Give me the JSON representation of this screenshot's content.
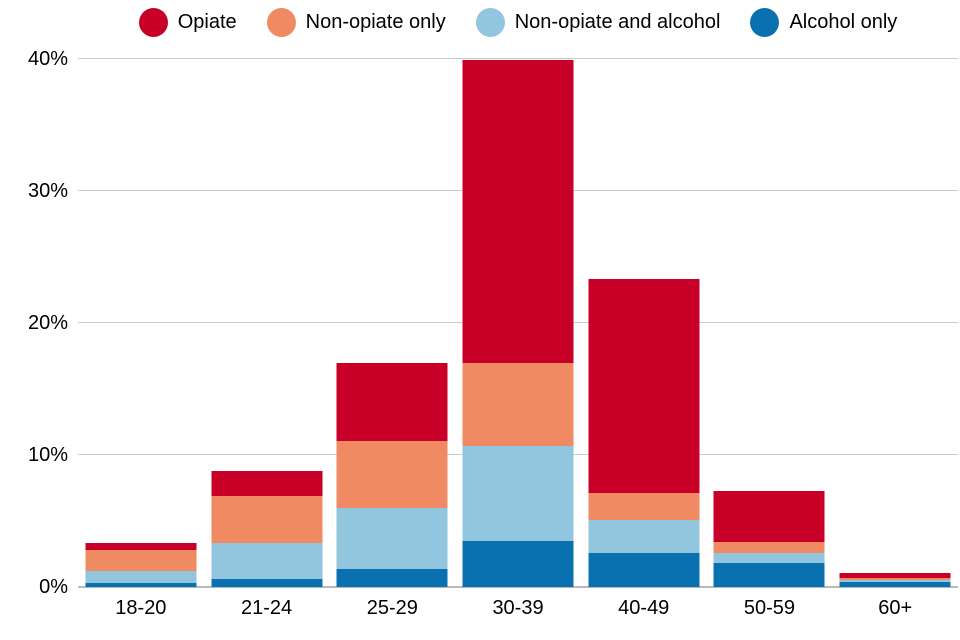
{
  "chart_data": {
    "type": "bar",
    "stacked": true,
    "title": "",
    "xlabel": "",
    "ylabel": "",
    "categories": [
      "18-20",
      "21-24",
      "25-29",
      "30-39",
      "40-49",
      "50-59",
      "60+"
    ],
    "series": [
      {
        "name": "Opiate",
        "color": "#c80028",
        "values": [
          0.5,
          1.9,
          5.9,
          22.9,
          16.2,
          3.9,
          0.4
        ]
      },
      {
        "name": "Non-opiate only",
        "color": "#ef8a62",
        "values": [
          1.6,
          3.6,
          5.1,
          6.3,
          2.0,
          0.8,
          0.15
        ]
      },
      {
        "name": "Non-opiate and alcohol",
        "color": "#92c5de",
        "values": [
          0.9,
          2.7,
          4.6,
          7.2,
          2.5,
          0.8,
          0.15
        ]
      },
      {
        "name": "Alcohol only",
        "color": "#0a71b0",
        "values": [
          0.3,
          0.6,
          1.4,
          3.5,
          2.6,
          1.8,
          0.4
        ]
      }
    ],
    "stack_order_bottom_to_top": [
      "Alcohol only",
      "Non-opiate and alcohol",
      "Non-opiate only",
      "Opiate"
    ],
    "ylim": [
      0,
      40
    ],
    "ytick_percents": [
      0,
      10,
      20,
      30,
      40
    ],
    "ytick_labels": [
      "0%",
      "10%",
      "20%",
      "30%",
      "40%"
    ],
    "grid": true,
    "legend_position": "top"
  },
  "colors": {
    "background": "#ffffff",
    "gridline": "#cccccc",
    "baseline": "#b9b9b9",
    "text": "#000000"
  }
}
